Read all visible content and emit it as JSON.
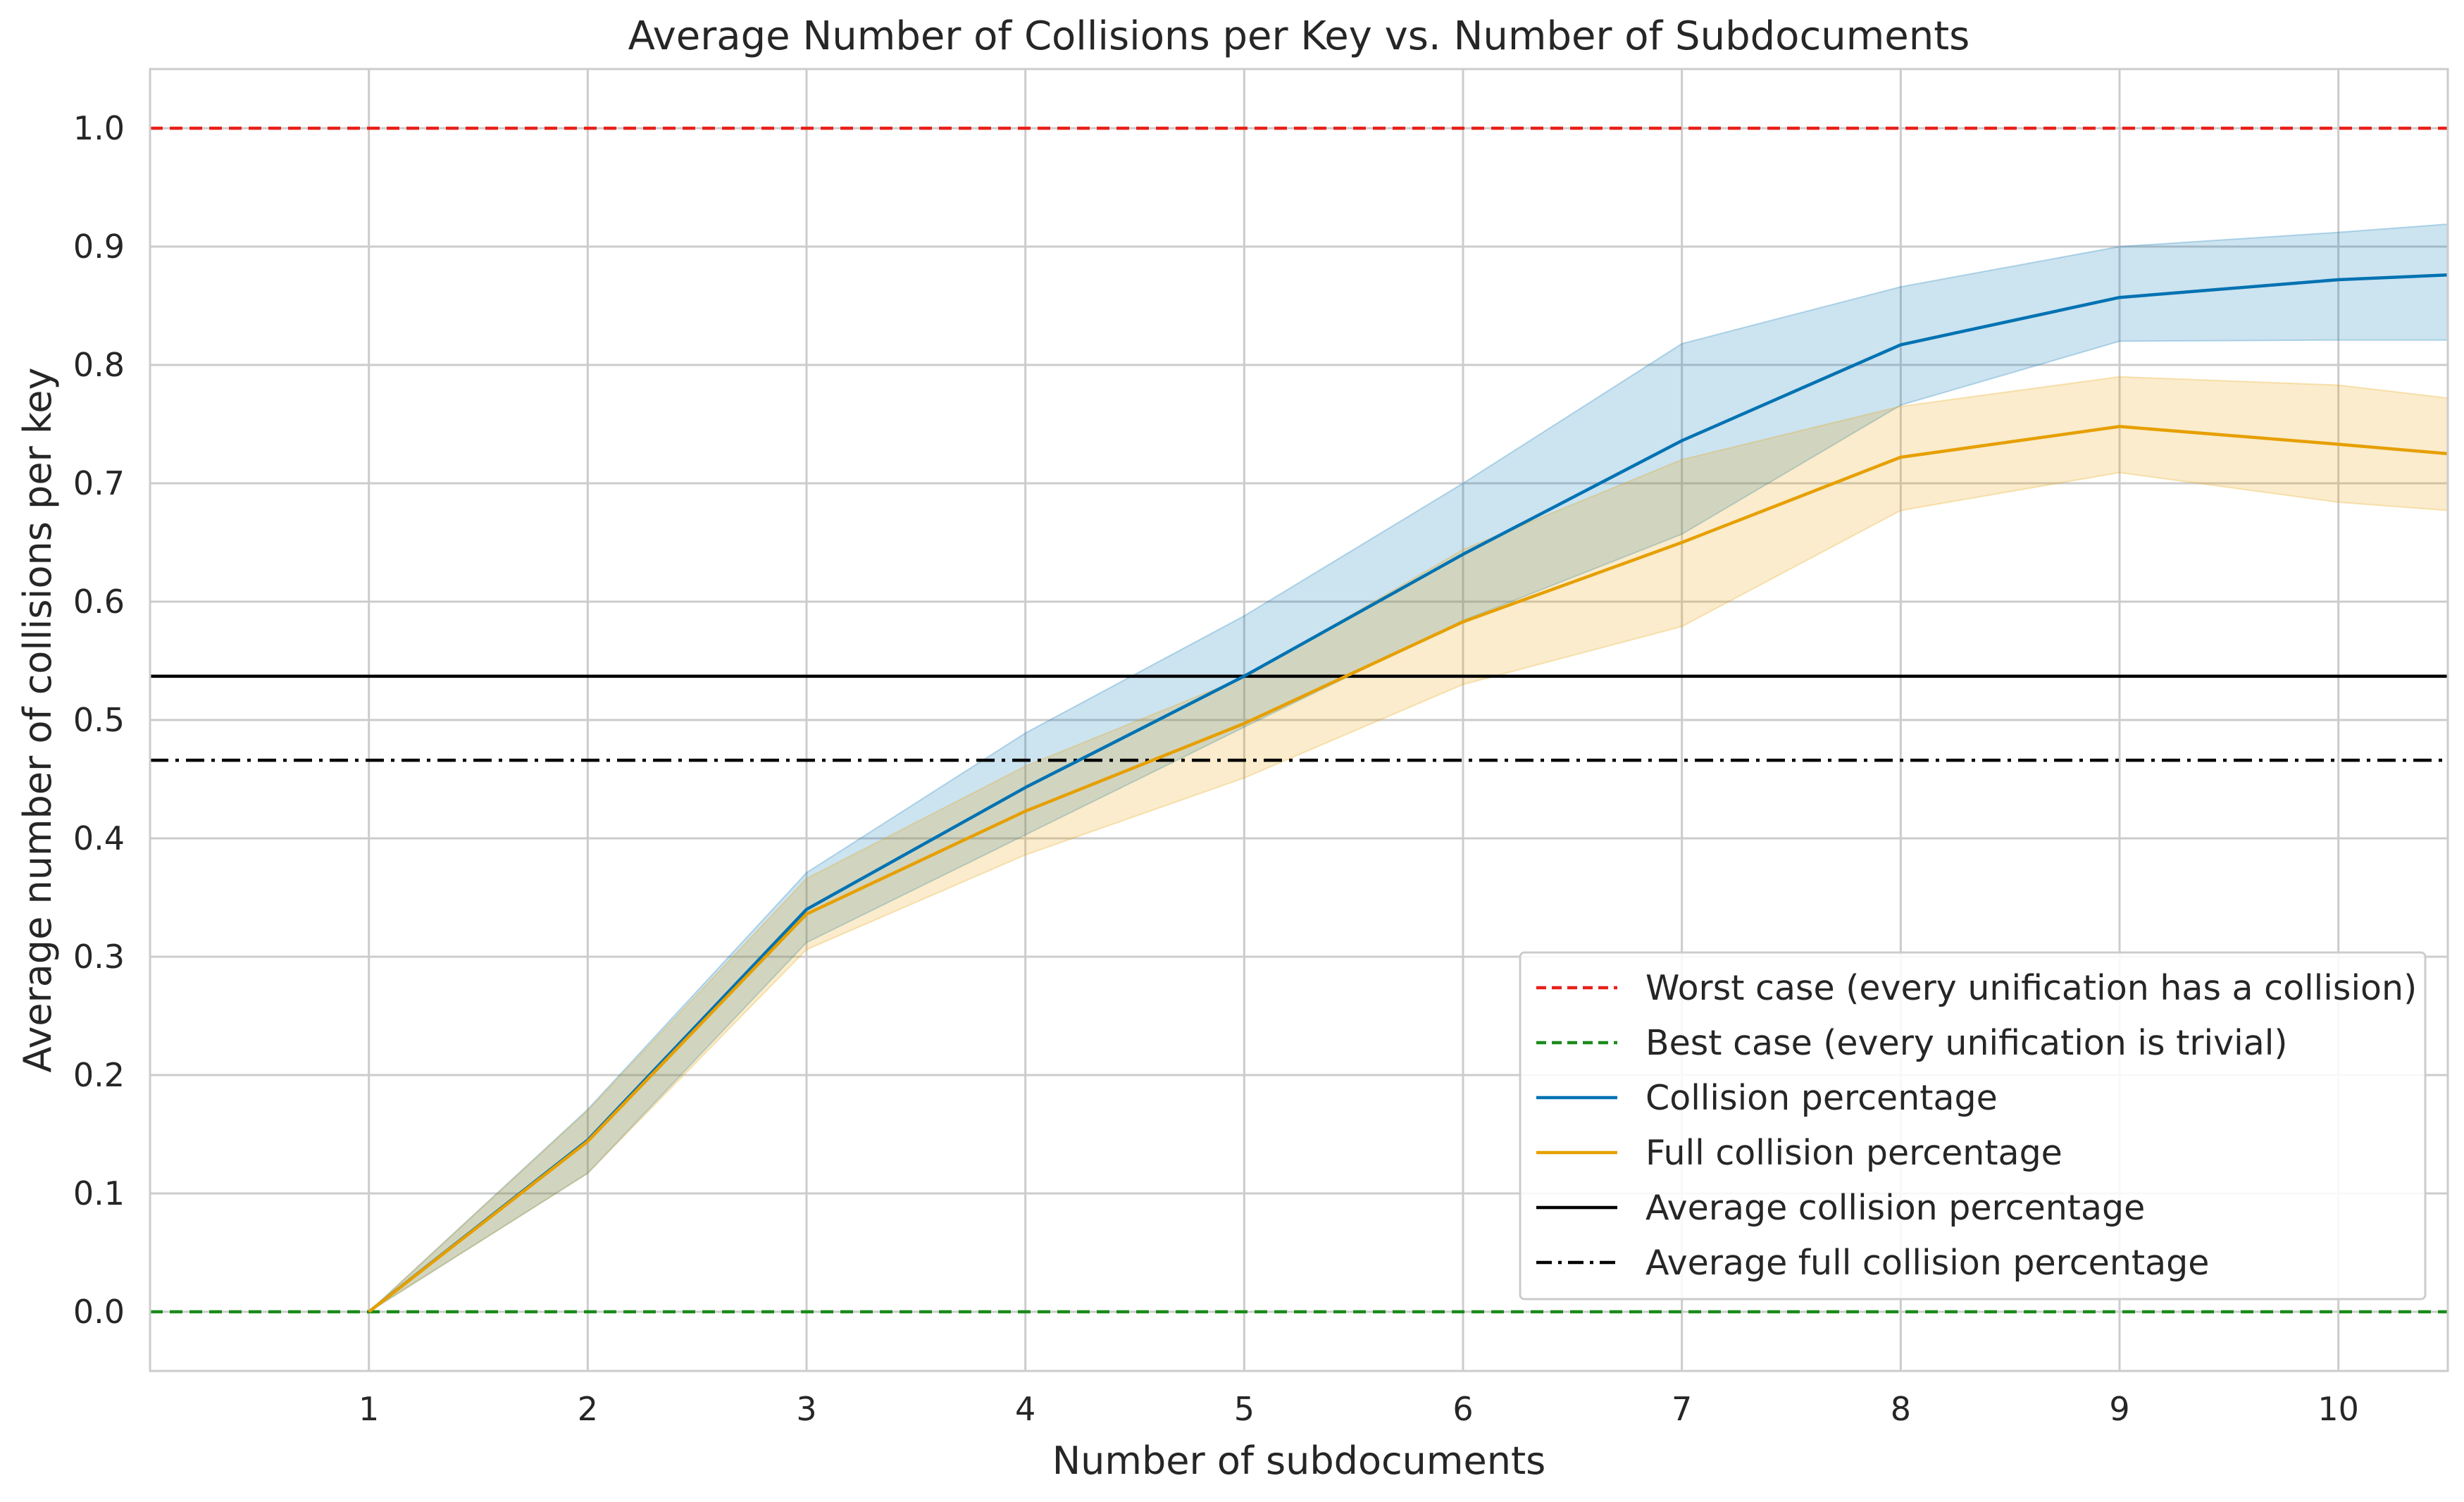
{
  "chart_data": {
    "type": "line",
    "title": "Average Number of Collisions per Key vs. Number of Subdocuments",
    "xlabel": "Number of subdocuments",
    "ylabel": "Average number of collisions per key",
    "xlim": [
      0,
      10.5
    ],
    "ylim": [
      -0.05,
      1.05
    ],
    "x_ticks": [
      "1",
      "2",
      "3",
      "4",
      "5",
      "6",
      "7",
      "8",
      "9",
      "10"
    ],
    "x_tick_values": [
      1,
      2,
      3,
      4,
      5,
      6,
      7,
      8,
      9,
      10
    ],
    "y_ticks": [
      "0.0",
      "0.1",
      "0.2",
      "0.3",
      "0.4",
      "0.5",
      "0.6",
      "0.7",
      "0.8",
      "0.9",
      "1.0"
    ],
    "y_tick_values": [
      0.0,
      0.1,
      0.2,
      0.3,
      0.4,
      0.5,
      0.6,
      0.7,
      0.8,
      0.9,
      1.0
    ],
    "grid": true,
    "legend_position": "lower right",
    "series": [
      {
        "name": "Collision percentage",
        "color": "#0072b2",
        "x": [
          1,
          2,
          3,
          4,
          5,
          6,
          7,
          8,
          9,
          10,
          10.5
        ],
        "y": [
          0.0,
          0.145,
          0.34,
          0.443,
          0.537,
          0.64,
          0.736,
          0.817,
          0.857,
          0.872,
          0.876
        ],
        "ci_lower": [
          0.0,
          0.117,
          0.312,
          0.403,
          0.494,
          0.584,
          0.657,
          0.766,
          0.82,
          0.821,
          0.821
        ],
        "ci_upper": [
          0.0,
          0.171,
          0.371,
          0.489,
          0.588,
          0.7,
          0.818,
          0.866,
          0.9,
          0.912,
          0.919
        ]
      },
      {
        "name": "Full collision percentage",
        "color": "#e69f00",
        "x": [
          1,
          2,
          3,
          4,
          5,
          6,
          7,
          8,
          9,
          10,
          10.5
        ],
        "y": [
          0.0,
          0.144,
          0.336,
          0.423,
          0.497,
          0.583,
          0.65,
          0.722,
          0.748,
          0.733,
          0.725
        ],
        "ci_lower": [
          0.0,
          0.117,
          0.306,
          0.386,
          0.451,
          0.53,
          0.579,
          0.677,
          0.709,
          0.684,
          0.677
        ],
        "ci_upper": [
          0.0,
          0.17,
          0.366,
          0.461,
          0.536,
          0.644,
          0.72,
          0.765,
          0.79,
          0.783,
          0.772
        ]
      }
    ],
    "reference_lines": [
      {
        "name": "Worst case (every unification has a collision)",
        "y": 1.0,
        "color": "#e8201a",
        "style": "dashed"
      },
      {
        "name": "Best case (every unification is trivial)",
        "y": 0.0,
        "color": "#1a8a1a",
        "style": "dashed"
      },
      {
        "name": "Average collision percentage",
        "y": 0.537,
        "color": "#000000",
        "style": "solid"
      },
      {
        "name": "Average full collision percentage",
        "y": 0.466,
        "color": "#000000",
        "style": "dashdot"
      }
    ],
    "legend_entries": [
      {
        "label": "Worst case (every unification has a collision)",
        "color": "#e8201a",
        "style": "dashed"
      },
      {
        "label": "Best case (every unification is trivial)",
        "color": "#1a8a1a",
        "style": "dashed"
      },
      {
        "label": "Collision percentage",
        "color": "#0072b2",
        "style": "solid"
      },
      {
        "label": "Full collision percentage",
        "color": "#e69f00",
        "style": "solid"
      },
      {
        "label": "Average collision percentage",
        "color": "#000000",
        "style": "solid"
      },
      {
        "label": "Average full collision percentage",
        "color": "#000000",
        "style": "dashdot"
      }
    ]
  }
}
